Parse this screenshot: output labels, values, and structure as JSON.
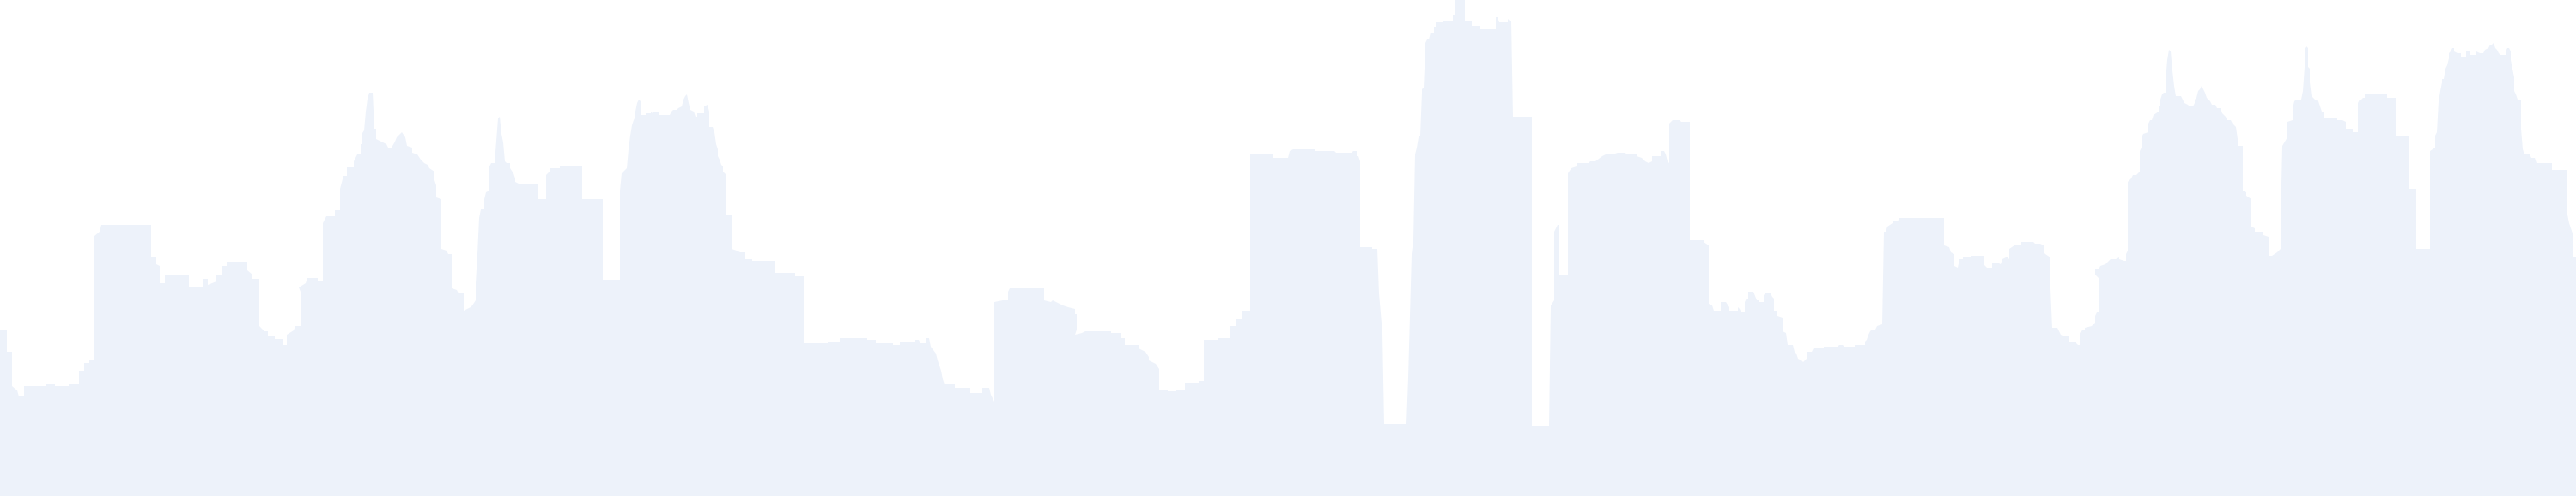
{
  "colors": {
    "skyline_fill": "#edf2fa",
    "background": "#ffffff"
  }
}
